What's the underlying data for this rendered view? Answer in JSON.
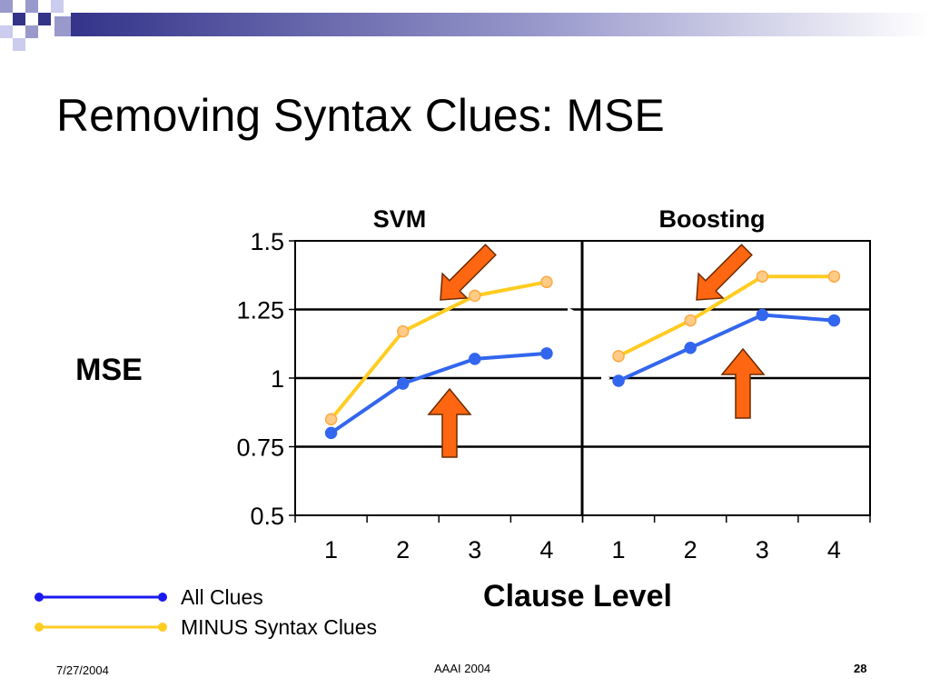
{
  "slide": {
    "title": "Removing Syntax Clues: MSE",
    "footer_date": "7/27/2004",
    "footer_center": "AAAI 2004",
    "page_number": "28"
  },
  "chart_data": {
    "type": "line",
    "ylabel": "MSE",
    "xlabel": "Clause Level",
    "ylim": [
      0.5,
      1.5
    ],
    "yticks": [
      "1.5",
      "1.25",
      "1",
      "0.75",
      "0.5"
    ],
    "grid": true,
    "legend_position": "bottom-left",
    "panels": [
      {
        "title": "SVM",
        "categories": [
          "1",
          "2",
          "3",
          "4"
        ],
        "series": [
          {
            "name": "All Clues",
            "color": "#3366ee",
            "values": [
              0.8,
              0.98,
              1.07,
              1.09
            ]
          },
          {
            "name": "MINUS Syntax Clues",
            "color": "#ffcc22",
            "values": [
              0.85,
              1.17,
              1.3,
              1.35
            ]
          }
        ]
      },
      {
        "title": "Boosting",
        "categories": [
          "1",
          "2",
          "3",
          "4"
        ],
        "series": [
          {
            "name": "All Clues",
            "color": "#3366ee",
            "values": [
              0.99,
              1.11,
              1.23,
              1.21
            ]
          },
          {
            "name": "MINUS Syntax Clues",
            "color": "#ffcc22",
            "values": [
              1.08,
              1.21,
              1.37,
              1.37
            ]
          }
        ]
      }
    ]
  },
  "legend": [
    {
      "label": "All Clues",
      "color": "#1a1aee"
    },
    {
      "label": "MINUS Syntax Clues",
      "color": "#ffcc22"
    }
  ],
  "arrows": {
    "color": "#ff6611",
    "icon": "arrow-icon"
  },
  "theme": {
    "accent": "#9999cc",
    "accent_dark": "#33338a"
  }
}
